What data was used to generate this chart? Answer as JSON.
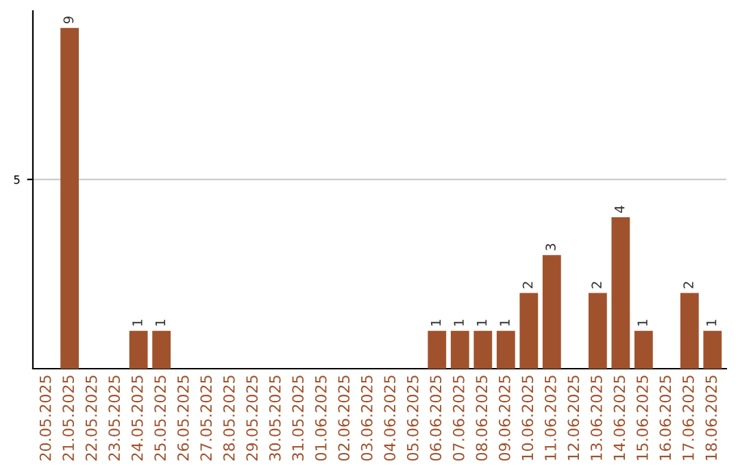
{
  "chart_data": {
    "type": "bar",
    "categories": [
      "20.05.2025",
      "21.05.2025",
      "22.05.2025",
      "23.05.2025",
      "24.05.2025",
      "25.05.2025",
      "26.05.2025",
      "27.05.2025",
      "28.05.2025",
      "29.05.2025",
      "30.05.2025",
      "31.05.2025",
      "01.06.2025",
      "02.06.2025",
      "03.06.2025",
      "04.06.2025",
      "05.06.2025",
      "06.06.2025",
      "07.06.2025",
      "08.06.2025",
      "09.06.2025",
      "10.06.2025",
      "11.06.2025",
      "12.06.2025",
      "13.06.2025",
      "14.06.2025",
      "15.06.2025",
      "16.06.2025",
      "17.06.2025",
      "18.06.2025"
    ],
    "values": [
      0,
      9,
      0,
      0,
      1,
      1,
      0,
      0,
      0,
      0,
      0,
      0,
      0,
      0,
      0,
      0,
      0,
      1,
      1,
      1,
      1,
      2,
      3,
      0,
      2,
      4,
      1,
      0,
      2,
      1
    ],
    "value_labels": [
      null,
      "9",
      null,
      null,
      "1",
      "1",
      null,
      null,
      null,
      null,
      null,
      null,
      null,
      null,
      null,
      null,
      null,
      "1",
      "1",
      "1",
      "1",
      "2",
      "3",
      null,
      "2",
      "4",
      "1",
      null,
      "2",
      "1"
    ],
    "color": "#a0522d",
    "ylim": [
      0,
      9.45
    ],
    "yticks": [
      5
    ],
    "grid": "y",
    "legend": false
  }
}
